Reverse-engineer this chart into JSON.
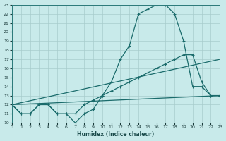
{
  "xlabel": "Humidex (Indice chaleur)",
  "bg_color": "#c8eaea",
  "grid_color": "#a8cccc",
  "line_color": "#1a6b6b",
  "xlim": [
    0,
    23
  ],
  "ylim": [
    10,
    23
  ],
  "xticks": [
    0,
    1,
    2,
    3,
    4,
    5,
    6,
    7,
    8,
    9,
    10,
    11,
    12,
    13,
    14,
    15,
    16,
    17,
    18,
    19,
    20,
    21,
    22,
    23
  ],
  "yticks": [
    10,
    11,
    12,
    13,
    14,
    15,
    16,
    17,
    18,
    19,
    20,
    21,
    22,
    23
  ],
  "line1_x": [
    0,
    1,
    2,
    3,
    4,
    5,
    6,
    7,
    8,
    9,
    10,
    11,
    12,
    13,
    14,
    15,
    16,
    17,
    18,
    19,
    20,
    21,
    22,
    23
  ],
  "line1_y": [
    12,
    11,
    11,
    12,
    12,
    11,
    11,
    10,
    11,
    11.5,
    13,
    14.5,
    17,
    18.5,
    22,
    22.5,
    23,
    23,
    22,
    19,
    14,
    14,
    13,
    13
  ],
  "line2_x": [
    0,
    1,
    2,
    3,
    4,
    5,
    6,
    7,
    8,
    9,
    10,
    11,
    12,
    13,
    14,
    15,
    16,
    17,
    18,
    19,
    20,
    21,
    22,
    23
  ],
  "line2_y": [
    12,
    11,
    11,
    12,
    12,
    11,
    11,
    11,
    12,
    12.5,
    13,
    13.5,
    14,
    14.5,
    15,
    15.5,
    16,
    16.5,
    17,
    17.5,
    17.5,
    14.5,
    13,
    13
  ],
  "line3_x": [
    0,
    23
  ],
  "line3_y": [
    12,
    17
  ],
  "line4_x": [
    0,
    23
  ],
  "line4_y": [
    12,
    13
  ]
}
